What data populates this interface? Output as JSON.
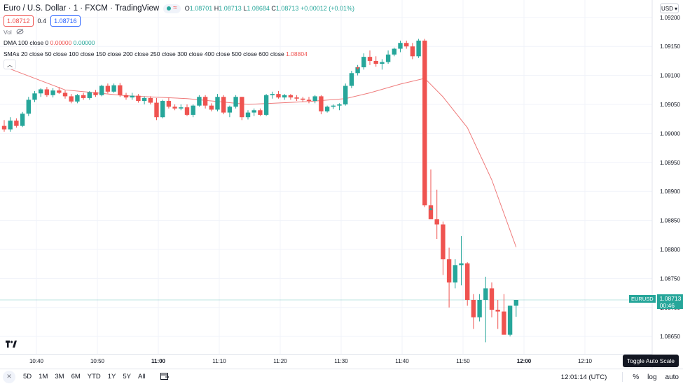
{
  "legend": {
    "title": "Euro / U.S. Dollar · 1 · FXCM · TradingView",
    "open_label": "O",
    "open": "1.08701",
    "high_label": "H",
    "high": "1.08713",
    "low_label": "L",
    "low": "1.08684",
    "close_label": "C",
    "close": "1.08713",
    "change": "+0.00012 (+0.01%)",
    "bid": "1.08712",
    "spread": "0.4",
    "ask": "1.08716"
  },
  "indicators": {
    "vol_label": "Vol",
    "dma_label": "DMA 100 close 0",
    "dma_v1": "0.00000",
    "dma_v2": "0.00000",
    "smas_label": "SMAs 20 close 50 close 100 close 150 close 200 close 250 close 300 close 400 close 500 close 600 close",
    "smas_value": "1.08804"
  },
  "currency": "USD",
  "price_tag": {
    "symbol": "EURUSD",
    "price": "1.08713",
    "countdown": "00:46"
  },
  "bottom": {
    "ranges": [
      "5D",
      "1M",
      "3M",
      "6M",
      "YTD",
      "1Y",
      "5Y",
      "All"
    ],
    "clock": "12:01:14 (UTC)",
    "percent": "%",
    "log": "log",
    "auto": "auto"
  },
  "tooltip": "Toggle Auto Scale",
  "colors": {
    "up": "#26a69a",
    "down": "#ef5350",
    "sma": "#ef7b7b",
    "grid": "#f0f3fa"
  },
  "chart_data": {
    "type": "candlestick",
    "title": "Euro / U.S. Dollar · 1 · FXCM · TradingView",
    "x_ticks": [
      "10:40",
      "10:50",
      "11:00",
      "11:10",
      "11:20",
      "11:30",
      "11:40",
      "11:50",
      "12:00",
      "12:10"
    ],
    "y_ticks": [
      "1.09200",
      "1.09150",
      "1.09100",
      "1.09050",
      "1.09000",
      "1.08950",
      "1.08900",
      "1.08850",
      "1.08800",
      "1.08750",
      "1.08700",
      "1.08650"
    ],
    "ylim": [
      1.0862,
      1.0923
    ],
    "candles_ohlc": [
      [
        1.09013,
        1.09023,
        1.09003,
        1.09007
      ],
      [
        1.09007,
        1.09028,
        1.09003,
        1.09022
      ],
      [
        1.09022,
        1.09026,
        1.0901,
        1.09013
      ],
      [
        1.09013,
        1.09037,
        1.09011,
        1.09034
      ],
      [
        1.09034,
        1.09063,
        1.0903,
        1.09058
      ],
      [
        1.09058,
        1.09073,
        1.09054,
        1.09069
      ],
      [
        1.09069,
        1.09078,
        1.09063,
        1.09076
      ],
      [
        1.09076,
        1.0908,
        1.09063,
        1.09066
      ],
      [
        1.09066,
        1.09078,
        1.09062,
        1.09074
      ],
      [
        1.09074,
        1.0908,
        1.09068,
        1.0907
      ],
      [
        1.0907,
        1.09074,
        1.0906,
        1.09064
      ],
      [
        1.09064,
        1.09068,
        1.09052,
        1.09055
      ],
      [
        1.09055,
        1.09068,
        1.09052,
        1.09066
      ],
      [
        1.09066,
        1.0907,
        1.09058,
        1.09061
      ],
      [
        1.09061,
        1.09073,
        1.09058,
        1.09071
      ],
      [
        1.09071,
        1.09075,
        1.09063,
        1.09066
      ],
      [
        1.09066,
        1.09084,
        1.09064,
        1.09082
      ],
      [
        1.09082,
        1.09086,
        1.09069,
        1.09072
      ],
      [
        1.09072,
        1.09086,
        1.0907,
        1.09083
      ],
      [
        1.09083,
        1.09087,
        1.09063,
        1.09066
      ],
      [
        1.09066,
        1.0907,
        1.09058,
        1.09062
      ],
      [
        1.09062,
        1.0907,
        1.09058,
        1.09065
      ],
      [
        1.09065,
        1.09068,
        1.09053,
        1.09056
      ],
      [
        1.09056,
        1.09064,
        1.0905,
        1.09061
      ],
      [
        1.09061,
        1.09064,
        1.0905,
        1.09053
      ],
      [
        1.09053,
        1.09061,
        1.09023,
        1.09028
      ],
      [
        1.09028,
        1.09058,
        1.09026,
        1.09056
      ],
      [
        1.09056,
        1.09062,
        1.09043,
        1.09046
      ],
      [
        1.09046,
        1.0905,
        1.0904,
        1.09043
      ],
      [
        1.09043,
        1.0905,
        1.0904,
        1.09045
      ],
      [
        1.09045,
        1.0905,
        1.0903,
        1.09032
      ],
      [
        1.09032,
        1.0905,
        1.09028,
        1.09048
      ],
      [
        1.09048,
        1.09066,
        1.09046,
        1.09063
      ],
      [
        1.09063,
        1.09066,
        1.09043,
        1.09048
      ],
      [
        1.09048,
        1.09052,
        1.09038,
        1.09041
      ],
      [
        1.09041,
        1.09068,
        1.09038,
        1.09063
      ],
      [
        1.09063,
        1.09066,
        1.09033,
        1.09036
      ],
      [
        1.09036,
        1.09048,
        1.09028,
        1.09046
      ],
      [
        1.09046,
        1.09066,
        1.09043,
        1.09063
      ],
      [
        1.09063,
        1.09063,
        1.09023,
        1.09028
      ],
      [
        1.09028,
        1.0904,
        1.09024,
        1.09036
      ],
      [
        1.09036,
        1.09043,
        1.0903,
        1.0904
      ],
      [
        1.0904,
        1.09043,
        1.0903,
        1.09032
      ],
      [
        1.09032,
        1.09068,
        1.0903,
        1.09066
      ],
      [
        1.09066,
        1.09072,
        1.0906,
        1.09068
      ],
      [
        1.09068,
        1.09073,
        1.0906,
        1.09062
      ],
      [
        1.09062,
        1.09068,
        1.09058,
        1.09066
      ],
      [
        1.09066,
        1.09068,
        1.09058,
        1.09062
      ],
      [
        1.09062,
        1.09066,
        1.09056,
        1.0906
      ],
      [
        1.0906,
        1.09063,
        1.09054,
        1.09058
      ],
      [
        1.09058,
        1.09063,
        1.09052,
        1.09056
      ],
      [
        1.09056,
        1.09066,
        1.09052,
        1.09064
      ],
      [
        1.09064,
        1.09066,
        1.09033,
        1.09038
      ],
      [
        1.09038,
        1.09048,
        1.09036,
        1.09046
      ],
      [
        1.09046,
        1.0905,
        1.09042,
        1.09048
      ],
      [
        1.09048,
        1.09052,
        1.0904,
        1.0905
      ],
      [
        1.0905,
        1.09086,
        1.09048,
        1.09082
      ],
      [
        1.09082,
        1.09108,
        1.09078,
        1.09104
      ],
      [
        1.09104,
        1.09118,
        1.091,
        1.09114
      ],
      [
        1.09114,
        1.09138,
        1.0911,
        1.09132
      ],
      [
        1.09132,
        1.09143,
        1.09118,
        1.09125
      ],
      [
        1.09125,
        1.09133,
        1.09115,
        1.0912
      ],
      [
        1.0912,
        1.09128,
        1.0911,
        1.09123
      ],
      [
        1.09123,
        1.09143,
        1.0912,
        1.09136
      ],
      [
        1.09136,
        1.09148,
        1.09133,
        1.09146
      ],
      [
        1.09146,
        1.0916,
        1.0914,
        1.09156
      ],
      [
        1.09156,
        1.0916,
        1.09146,
        1.0915
      ],
      [
        1.0915,
        1.09156,
        1.09128,
        1.09133
      ],
      [
        1.09133,
        1.09163,
        1.0913,
        1.0916
      ],
      [
        1.0916,
        1.09163,
        1.08873,
        1.08876
      ],
      [
        1.08876,
        1.08938,
        1.0886,
        1.08852
      ],
      [
        1.08852,
        1.08903,
        1.08818,
        1.08843
      ],
      [
        1.08843,
        1.08848,
        1.08756,
        1.08783
      ],
      [
        1.08783,
        1.08803,
        1.087,
        1.08743
      ],
      [
        1.08743,
        1.08783,
        1.08733,
        1.08773
      ],
      [
        1.08773,
        1.08823,
        1.08738,
        1.08776
      ],
      [
        1.08776,
        1.08778,
        1.08703,
        1.08713
      ],
      [
        1.08713,
        1.08723,
        1.08663,
        1.08683
      ],
      [
        1.08683,
        1.08723,
        1.08676,
        1.08713
      ],
      [
        1.08713,
        1.08753,
        1.0864,
        1.08733
      ],
      [
        1.08733,
        1.08743,
        1.08683,
        1.08696
      ],
      [
        1.08696,
        1.08713,
        1.08663,
        1.08693
      ],
      [
        1.08693,
        1.08723,
        1.0866,
        1.08653
      ],
      [
        1.08653,
        1.08703,
        1.0865,
        1.08703
      ],
      [
        1.08703,
        1.08713,
        1.08684,
        1.08713
      ]
    ],
    "sma_line": [
      [
        0,
        1.09115
      ],
      [
        10,
        1.09075
      ],
      [
        20,
        1.09065
      ],
      [
        30,
        1.0906
      ],
      [
        40,
        1.0905
      ],
      [
        50,
        1.09055
      ],
      [
        56,
        1.0906
      ],
      [
        60,
        1.0907
      ],
      [
        65,
        1.09085
      ],
      [
        69,
        1.09095
      ],
      [
        72,
        1.09063
      ],
      [
        76,
        1.0901
      ],
      [
        80,
        1.0892
      ],
      [
        84,
        1.08804
      ]
    ]
  }
}
